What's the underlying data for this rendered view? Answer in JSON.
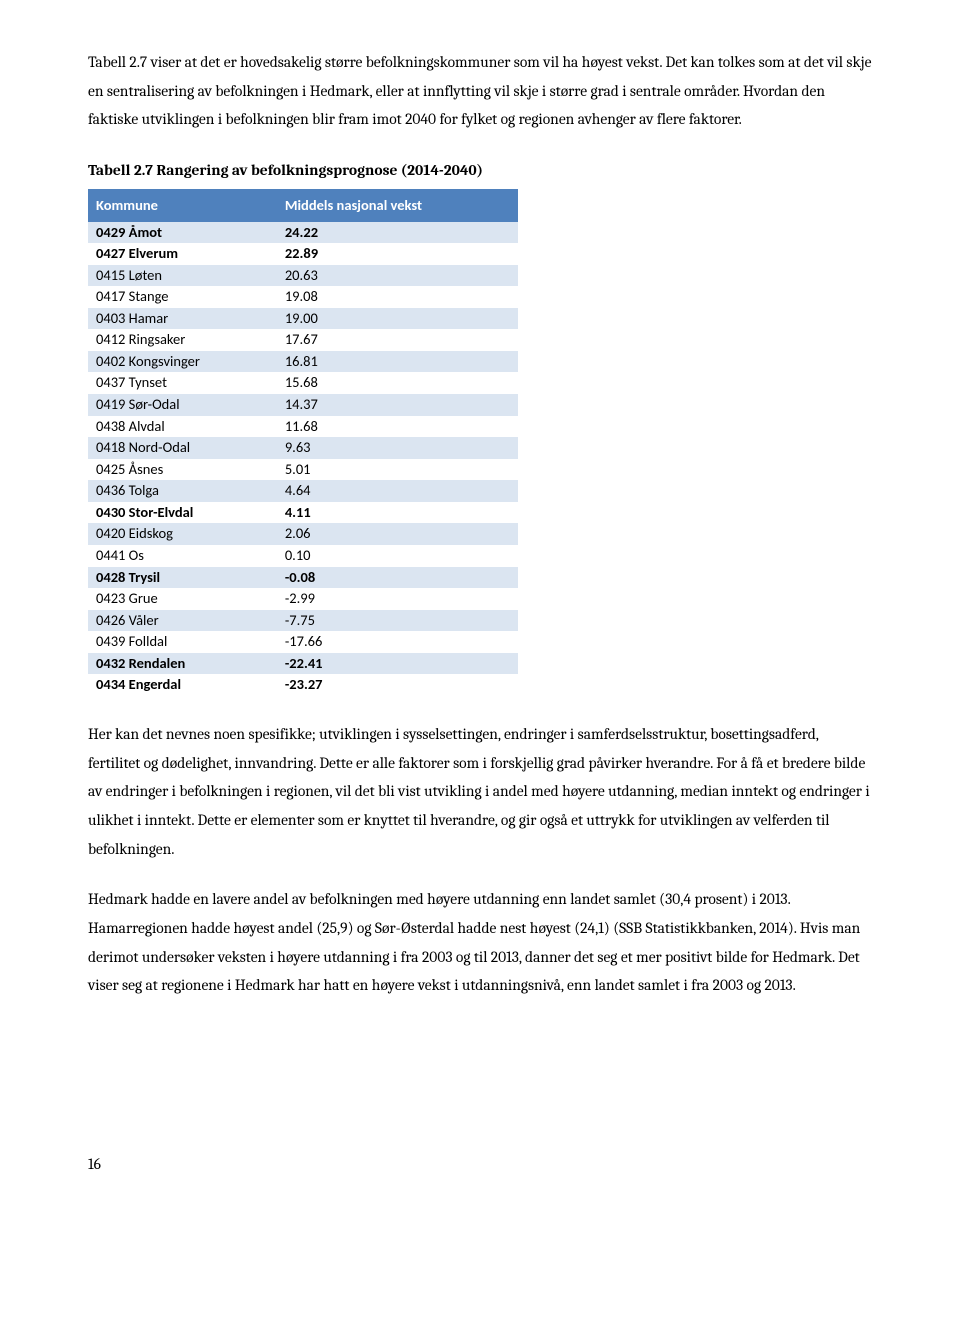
{
  "paragraphs": {
    "p1": "Tabell 2.7 viser at det er hovedsakelig større befolkningskommuner som vil ha høyest vekst. Det kan tolkes som at det vil skje en sentralisering av befolkningen i Hedmark, eller at innflytting vil skje i større grad i sentrale områder. Hvordan den faktiske utviklingen i befolkningen blir fram imot 2040 for fylket og regionen avhenger av flere faktorer.",
    "p2": "Her kan det nevnes noen spesifikke; utviklingen i sysselsettingen, endringer i samferdselsstruktur, bosettingsadferd, fertilitet og dødelighet, innvandring. Dette er alle faktorer som i forskjellig grad påvirker hverandre. For å få et bredere bilde av endringer i befolkningen i regionen, vil det bli vist utvikling i andel med høyere utdanning, median inntekt og endringer i ulikhet i inntekt. Dette er elementer som er knyttet til hverandre, og gir også et uttrykk for utviklingen av velferden til befolkningen.",
    "p3": "Hedmark hadde en lavere andel av befolkningen med høyere utdanning enn landet samlet (30,4 prosent) i 2013. Hamarregionen hadde høyest andel (25,9) og Sør-Østerdal hadde nest høyest (24,1) (SSB Statistikkbanken, 2014). Hvis man derimot undersøker veksten i høyere utdanning i fra 2003 og til 2013, danner det seg et mer positivt bilde for Hedmark. Det viser seg at regionene i Hedmark har hatt en høyere vekst i utdanningsnivå, enn landet samlet i fra 2003 og 2013."
  },
  "table": {
    "title": "Tabell 2.7 Rangering av befolkningsprognose (2014-2040)",
    "col1_header": "Kommune",
    "col2_header": "Middels nasjonal vekst",
    "header_bg": "#4f81bd",
    "header_fg": "#ffffff",
    "row_odd_bg": "#dbe5f1",
    "row_even_bg": "#ffffff",
    "font_family": "Calibri",
    "rows": [
      {
        "name": "0429 Åmot",
        "value": "24.22",
        "bold": true
      },
      {
        "name": "0427 Elverum",
        "value": "22.89",
        "bold": true
      },
      {
        "name": "0415 Løten",
        "value": "20.63",
        "bold": false
      },
      {
        "name": "0417 Stange",
        "value": "19.08",
        "bold": false
      },
      {
        "name": "0403 Hamar",
        "value": "19.00",
        "bold": false
      },
      {
        "name": "0412 Ringsaker",
        "value": "17.67",
        "bold": false
      },
      {
        "name": "0402 Kongsvinger",
        "value": "16.81",
        "bold": false
      },
      {
        "name": "0437 Tynset",
        "value": "15.68",
        "bold": false
      },
      {
        "name": "0419 Sør-Odal",
        "value": "14.37",
        "bold": false
      },
      {
        "name": "0438 Alvdal",
        "value": "11.68",
        "bold": false
      },
      {
        "name": "0418 Nord-Odal",
        "value": "9.63",
        "bold": false
      },
      {
        "name": "0425 Åsnes",
        "value": "5.01",
        "bold": false
      },
      {
        "name": "0436 Tolga",
        "value": "4.64",
        "bold": false
      },
      {
        "name": "0430 Stor-Elvdal",
        "value": "4.11",
        "bold": true
      },
      {
        "name": "0420 Eidskog",
        "value": "2.06",
        "bold": false
      },
      {
        "name": "0441 Os",
        "value": "0.10",
        "bold": false
      },
      {
        "name": "0428 Trysil",
        "value": "-0.08",
        "bold": true
      },
      {
        "name": "0423 Grue",
        "value": "-2.99",
        "bold": false
      },
      {
        "name": "0426 Våler",
        "value": "-7.75",
        "bold": false
      },
      {
        "name": "0439 Folldal",
        "value": "-17.66",
        "bold": false
      },
      {
        "name": "0432 Rendalen",
        "value": "-22.41",
        "bold": true
      },
      {
        "name": "0434 Engerdal",
        "value": "-23.27",
        "bold": true
      }
    ]
  },
  "page_number": "16"
}
